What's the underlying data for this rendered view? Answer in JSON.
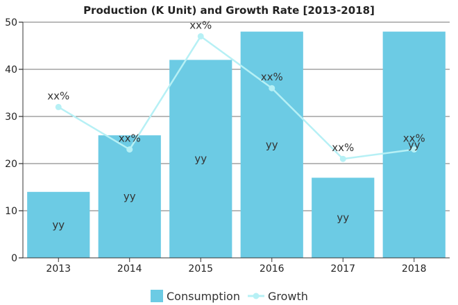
{
  "chart_data": {
    "type": "bar",
    "title": "Production (K Unit) and Growth Rate [2013-2018]",
    "xlabel": "",
    "ylabel": "",
    "ylim": [
      0,
      50
    ],
    "yticks": [
      0,
      10,
      20,
      30,
      40,
      50
    ],
    "categories": [
      "2013",
      "2014",
      "2015",
      "2016",
      "2017",
      "2018"
    ],
    "grid": true,
    "legend_position": "bottom",
    "series": [
      {
        "name": "Consumption",
        "type": "bar",
        "color": "#6ccbe4",
        "values": [
          14,
          26,
          42,
          48,
          17,
          48
        ],
        "data_labels": [
          "yy",
          "yy",
          "yy",
          "yy",
          "yy",
          "yy"
        ]
      },
      {
        "name": "Growth",
        "type": "line",
        "color": "#b6f0f5",
        "values": [
          32,
          23,
          47,
          36,
          21,
          23
        ],
        "data_labels": [
          "xx%",
          "xx%",
          "xx%",
          "xx%",
          "xx%",
          "xx%"
        ]
      }
    ]
  }
}
